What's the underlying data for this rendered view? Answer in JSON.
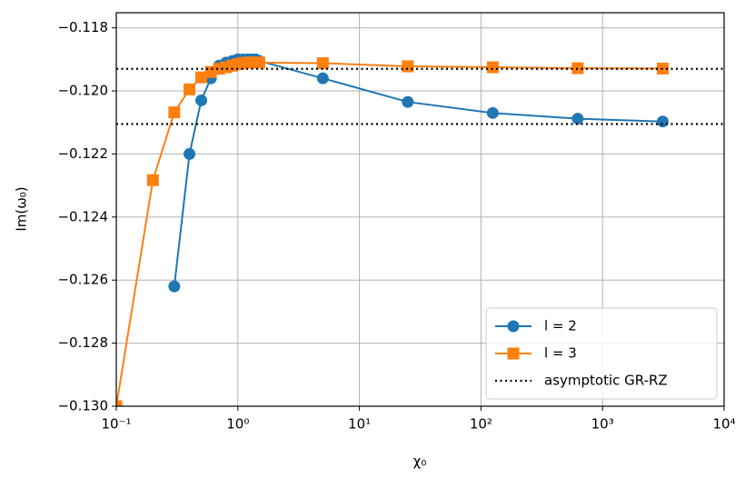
{
  "chart_data": {
    "type": "line",
    "x_label": "χ₀",
    "y_label": "Im(ω₀)",
    "xscale": "log",
    "grid": true,
    "legend": "lower right",
    "xlim": [
      0.1,
      10000
    ],
    "xticks": [
      {
        "value": 0.1,
        "label": "10⁻¹"
      },
      {
        "value": 1,
        "label": "10⁰"
      },
      {
        "value": 10,
        "label": "10¹"
      },
      {
        "value": 100,
        "label": "10²"
      },
      {
        "value": 1000,
        "label": "10³"
      },
      {
        "value": 10000,
        "label": "10⁴"
      }
    ],
    "ylim": [
      -0.13,
      -0.11752
    ],
    "yticks": [
      {
        "value": -0.13,
        "label": "−0.130"
      },
      {
        "value": -0.128,
        "label": "−0.128"
      },
      {
        "value": -0.126,
        "label": "−0.126"
      },
      {
        "value": -0.124,
        "label": "−0.124"
      },
      {
        "value": -0.122,
        "label": "−0.122"
      },
      {
        "value": -0.12,
        "label": "−0.120"
      },
      {
        "value": -0.118,
        "label": "−0.118"
      }
    ],
    "series": [
      {
        "name": "l = 2",
        "color": "#1f77b4",
        "marker": "circle",
        "x": [
          0.3,
          0.4,
          0.5,
          0.6,
          0.7,
          0.8,
          0.9,
          1.0,
          1.1,
          1.2,
          1.3,
          1.4,
          1.5,
          5,
          25,
          125,
          625,
          3125
        ],
        "values": [
          -0.1262,
          -0.122,
          -0.1203,
          -0.1196,
          -0.1192,
          -0.1191,
          -0.11905,
          -0.119,
          -0.119,
          -0.119,
          -0.119,
          -0.119,
          -0.11905,
          -0.1196,
          -0.12035,
          -0.1207,
          -0.12088,
          -0.12097
        ]
      },
      {
        "name": "l = 3",
        "color": "#ff7f0e",
        "marker": "square",
        "x": [
          0.1,
          0.2,
          0.3,
          0.4,
          0.5,
          0.6,
          0.7,
          0.8,
          0.9,
          1.0,
          1.1,
          1.2,
          1.3,
          1.4,
          1.5,
          5,
          25,
          125,
          625,
          3125
        ],
        "values": [
          -0.13,
          -0.12283,
          -0.12068,
          -0.11995,
          -0.11957,
          -0.1194,
          -0.1193,
          -0.11925,
          -0.1192,
          -0.11915,
          -0.11912,
          -0.1191,
          -0.1191,
          -0.1191,
          -0.1191,
          -0.11912,
          -0.11922,
          -0.11925,
          -0.11928,
          -0.11929
        ]
      }
    ],
    "hlines": {
      "name": "asymptotic GR-RZ",
      "color": "#000000",
      "values": [
        -0.1193,
        -0.12105
      ]
    }
  }
}
